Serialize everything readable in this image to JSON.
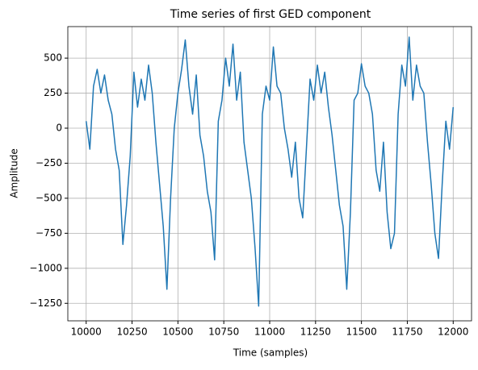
{
  "chart_data": {
    "type": "line",
    "title": "Time series of first GED component",
    "xlabel": "Time (samples)",
    "ylabel": "Amplitude",
    "color": "#1f77b4",
    "grid": true,
    "x": [
      10000,
      10020,
      10040,
      10060,
      10080,
      10100,
      10120,
      10140,
      10160,
      10180,
      10200,
      10220,
      10240,
      10260,
      10280,
      10300,
      10320,
      10340,
      10360,
      10380,
      10400,
      10420,
      10440,
      10460,
      10480,
      10500,
      10520,
      10540,
      10560,
      10580,
      10600,
      10620,
      10640,
      10660,
      10680,
      10700,
      10720,
      10740,
      10760,
      10780,
      10800,
      10820,
      10840,
      10860,
      10880,
      10900,
      10920,
      10940,
      10960,
      10980,
      11000,
      11020,
      11040,
      11060,
      11080,
      11100,
      11120,
      11140,
      11160,
      11180,
      11200,
      11220,
      11240,
      11260,
      11280,
      11300,
      11320,
      11340,
      11360,
      11380,
      11400,
      11420,
      11440,
      11460,
      11480,
      11500,
      11520,
      11540,
      11560,
      11580,
      11600,
      11620,
      11640,
      11660,
      11680,
      11700,
      11720,
      11740,
      11760,
      11780,
      11800,
      11820,
      11840,
      11860,
      11880,
      11900,
      11920,
      11940,
      11960,
      11980,
      12000
    ],
    "values": [
      50,
      -150,
      300,
      420,
      250,
      380,
      200,
      100,
      -150,
      -300,
      -830,
      -550,
      -200,
      400,
      150,
      350,
      200,
      450,
      250,
      -100,
      -400,
      -700,
      -1150,
      -500,
      0,
      250,
      420,
      630,
      300,
      100,
      380,
      -50,
      -200,
      -450,
      -600,
      -940,
      50,
      200,
      500,
      300,
      600,
      200,
      400,
      -100,
      -300,
      -500,
      -850,
      -1270,
      100,
      300,
      200,
      580,
      300,
      250,
      0,
      -150,
      -350,
      -100,
      -500,
      -640,
      -150,
      350,
      200,
      450,
      250,
      400,
      150,
      -50,
      -300,
      -550,
      -700,
      -1150,
      -600,
      200,
      250,
      460,
      300,
      250,
      100,
      -300,
      -450,
      -100,
      -600,
      -860,
      -750,
      100,
      450,
      300,
      650,
      200,
      450,
      300,
      250,
      -100,
      -400,
      -750,
      -930,
      -400,
      50,
      -150,
      150
    ],
    "xlim": [
      9900,
      12100
    ],
    "ylim": [
      -1375,
      725
    ],
    "xticks": [
      10000,
      10250,
      10500,
      10750,
      11000,
      11250,
      11500,
      11750,
      12000
    ],
    "yticks": [
      {
        "value": -1250,
        "label": "−1250"
      },
      {
        "value": -1000,
        "label": "−1000"
      },
      {
        "value": -750,
        "label": "−750"
      },
      {
        "value": -500,
        "label": "−500"
      },
      {
        "value": -250,
        "label": "−250"
      },
      0,
      250,
      500
    ]
  }
}
